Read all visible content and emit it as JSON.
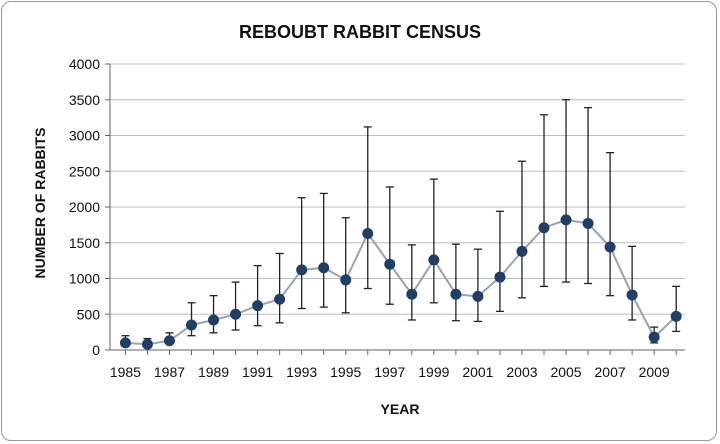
{
  "chart_data": {
    "type": "line",
    "title": "REBOUBT RABBIT CENSUS",
    "xlabel": "YEAR",
    "ylabel": "NUMBER OF RABBITS",
    "xlim": [
      1985,
      2010
    ],
    "ylim": [
      0,
      4000
    ],
    "y_ticks": [
      0,
      500,
      1000,
      1500,
      2000,
      2500,
      3000,
      3500,
      4000
    ],
    "x_ticks": [
      1985,
      1987,
      1989,
      1991,
      1993,
      1995,
      1997,
      1999,
      2001,
      2003,
      2005,
      2007,
      2009
    ],
    "grid": true,
    "legend": false,
    "colors": {
      "line": "#9aa3ad",
      "marker": "#1f3f68",
      "errorbar": "#222222",
      "grid": "#bdbdbd"
    },
    "series": [
      {
        "x": [
          1985,
          1986,
          1987,
          1988,
          1989,
          1990,
          1991,
          1992,
          1993,
          1994,
          1995,
          1996,
          1997,
          1998,
          1999,
          2000,
          2001,
          2002,
          2003,
          2004,
          2005,
          2006,
          2007,
          2008,
          2009,
          2010
        ],
        "y": [
          100,
          80,
          130,
          350,
          420,
          500,
          620,
          710,
          1120,
          1150,
          980,
          1630,
          1200,
          780,
          1260,
          780,
          750,
          1020,
          1380,
          1710,
          1820,
          1770,
          1440,
          770,
          180,
          470
        ],
        "y_low": [
          60,
          50,
          90,
          200,
          240,
          280,
          340,
          380,
          580,
          600,
          520,
          860,
          640,
          420,
          660,
          410,
          400,
          540,
          730,
          890,
          950,
          930,
          760,
          420,
          100,
          260
        ],
        "y_high": [
          200,
          160,
          240,
          660,
          760,
          950,
          1180,
          1350,
          2130,
          2190,
          1850,
          3120,
          2280,
          1470,
          2390,
          1480,
          1410,
          1940,
          2640,
          3290,
          3500,
          3390,
          2760,
          1450,
          320,
          890
        ]
      }
    ]
  }
}
